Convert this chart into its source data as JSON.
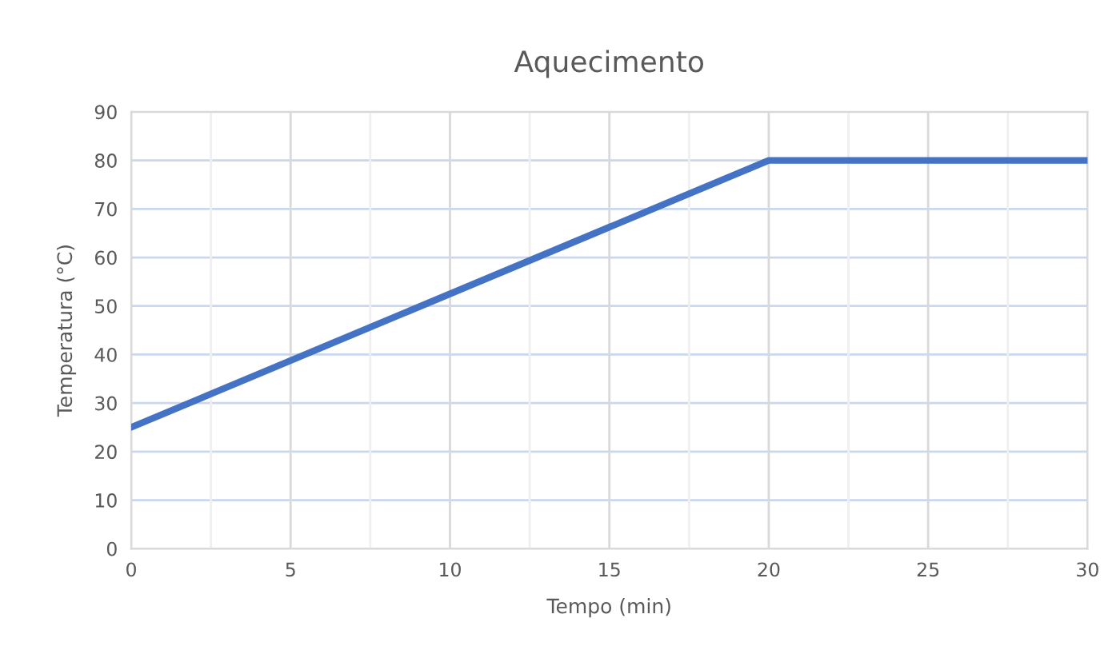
{
  "chart_data": {
    "type": "line",
    "title": "Aquecimento",
    "xlabel": "Tempo (min)",
    "ylabel": "Temperatura (°C)",
    "x": [
      0,
      20,
      30
    ],
    "series": [
      {
        "color": "#4472c4",
        "values": [
          25,
          80,
          80
        ]
      }
    ],
    "xlim": [
      0,
      30
    ],
    "ylim": [
      0,
      90
    ],
    "xticks": [
      0,
      {
        "value": 2.5,
        "label": null
      },
      5,
      {
        "value": 7.5,
        "label": null
      },
      10,
      {
        "value": 12.5,
        "label": null
      },
      15,
      {
        "value": 17.5,
        "label": null
      },
      20,
      {
        "value": 22.5,
        "label": null
      },
      25,
      {
        "value": 27.5,
        "label": null
      },
      30
    ],
    "yticks": [
      0,
      10,
      20,
      30,
      40,
      50,
      60,
      70,
      80,
      90
    ],
    "grid": true,
    "legend": false,
    "marker": "none",
    "line_style": "solid"
  }
}
